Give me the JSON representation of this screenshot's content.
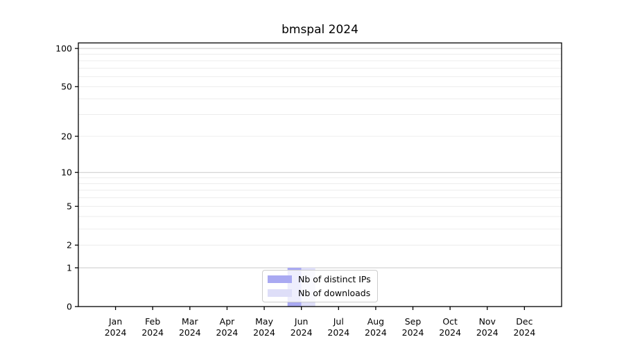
{
  "title": "bmspal 2024",
  "chart_data": {
    "type": "bar",
    "title": "bmspal 2024",
    "categories": [
      "Jan",
      "Feb",
      "Mar",
      "Apr",
      "May",
      "Jun",
      "Jul",
      "Aug",
      "Sep",
      "Oct",
      "Nov",
      "Dec"
    ],
    "x_year_label": "2024",
    "series": [
      {
        "name": "Nb of distinct IPs",
        "color": "#a9a9f2",
        "values": [
          0,
          0,
          0,
          0,
          0,
          1,
          0,
          0,
          0,
          0,
          0,
          0
        ]
      },
      {
        "name": "Nb of downloads",
        "color": "#dedef8",
        "values": [
          0,
          0,
          0,
          0,
          0,
          1,
          0,
          0,
          0,
          0,
          0,
          0
        ]
      }
    ],
    "yscale": "log10(1+x)",
    "ylim": [
      0,
      110
    ],
    "yticks": [
      100,
      50,
      20,
      10,
      5,
      2,
      1,
      0
    ],
    "y_minor_gridlines": [
      2,
      3,
      4,
      5,
      6,
      7,
      8,
      9,
      20,
      30,
      40,
      50,
      60,
      70,
      80,
      90
    ],
    "y_major_gridlines": [
      1,
      10,
      100
    ],
    "grid": "horizontal",
    "legend_position": "bottom-center-inside",
    "colors": {
      "major_grid": "#c9c9c9",
      "minor_grid": "#ececec",
      "spine": "#000000",
      "text": "#000000"
    }
  }
}
